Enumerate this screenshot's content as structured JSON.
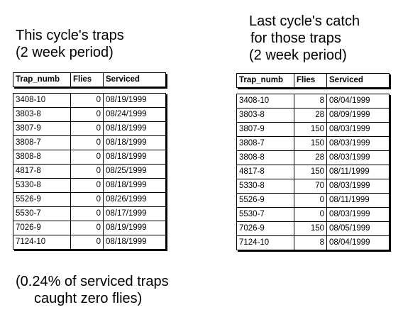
{
  "left_caption": [
    "This cycle's traps",
    "(2 week period)"
  ],
  "right_caption": [
    "Last cycle's catch",
    "for those traps",
    "(2 week period)"
  ],
  "footnote": [
    "(0.24% of serviced traps",
    "caught zero flies)"
  ],
  "left_table": {
    "columns": [
      "Trap_numb",
      "Flies",
      "Serviced"
    ],
    "rows": [
      [
        "3408-10",
        "0",
        "08/19/1999"
      ],
      [
        "3803-8",
        "0",
        "08/24/1999"
      ],
      [
        "3807-9",
        "0",
        "08/18/1999"
      ],
      [
        "3808-7",
        "0",
        "08/18/1999"
      ],
      [
        "3808-8",
        "0",
        "08/18/1999"
      ],
      [
        "4817-8",
        "0",
        "08/25/1999"
      ],
      [
        "5330-8",
        "0",
        "08/18/1999"
      ],
      [
        "5526-9",
        "0",
        "08/26/1999"
      ],
      [
        "5530-7",
        "0",
        "08/17/1999"
      ],
      [
        "7026-9",
        "0",
        "08/19/1999"
      ],
      [
        "7124-10",
        "0",
        "08/18/1999"
      ]
    ]
  },
  "right_table": {
    "columns": [
      "Trap_numb",
      "Flies",
      "Serviced"
    ],
    "rows": [
      [
        "3408-10",
        "8",
        "08/04/1999"
      ],
      [
        "3803-8",
        "28",
        "08/09/1999"
      ],
      [
        "3807-9",
        "150",
        "08/03/1999"
      ],
      [
        "3808-7",
        "150",
        "08/03/1999"
      ],
      [
        "3808-8",
        "28",
        "08/03/1999"
      ],
      [
        "4817-8",
        "150",
        "08/11/1999"
      ],
      [
        "5330-8",
        "70",
        "08/03/1999"
      ],
      [
        "5526-9",
        "0",
        "08/11/1999"
      ],
      [
        "5530-7",
        "0",
        "08/03/1999"
      ],
      [
        "7026-9",
        "150",
        "08/05/1999"
      ],
      [
        "7124-10",
        "8",
        "08/04/1999"
      ]
    ]
  }
}
